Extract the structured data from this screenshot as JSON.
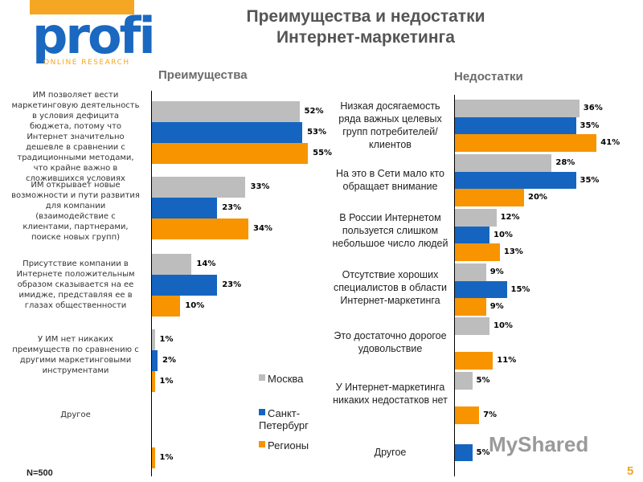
{
  "logo": {
    "main": "profi",
    "sub": "ONLINE RESEARCH"
  },
  "watermark": "MyShared",
  "page_number": "5",
  "sample_note": "N=500",
  "colors": {
    "moscow": "#bdbdbd",
    "spb": "#1565c0",
    "regions": "#f79400",
    "accent": "#f5a623"
  },
  "chart_data": [
    {
      "type": "bar",
      "orientation": "horizontal",
      "title": "Преимущества и недостатки Интернет-маркетинга",
      "subtitle": "Преимущества",
      "categories": [
        "ИМ позволяет вести маркетинговую деятельность в условия дефицита бюджета, потому что Интернет значительно дешевле в сравнении с традиционными методами, что крайне важно в сложившихся условиях",
        "ИМ открывает новые возможности и пути развития для компании (взаимодействие с клиентами, партнерами, поиске новых групп)",
        "Присутствие компании в Интернете положительным образом сказывается на ее имидже, представляя ее в глазах общественности",
        "У ИМ нет никаких преимуществ по сравнению с другими маркетинговыми инструментами",
        "Другое"
      ],
      "series": [
        {
          "name": "Москва",
          "values": [
            52,
            33,
            14,
            1,
            null
          ],
          "labels": [
            "52%",
            "33%",
            "14%",
            "1%",
            ""
          ]
        },
        {
          "name": "Санкт-Петербург",
          "values": [
            53,
            23,
            23,
            2,
            null
          ],
          "labels": [
            "53%",
            "23%",
            "23%",
            "2%",
            ""
          ]
        },
        {
          "name": "Регионы",
          "values": [
            55,
            34,
            10,
            1,
            1
          ],
          "labels": [
            "55%",
            "34%",
            "10%",
            "1%",
            "1%"
          ]
        }
      ],
      "legend": [
        "Москва",
        "Санкт-Петербург",
        "Регионы"
      ],
      "legend_position": "bottom-right",
      "xlim": [
        0,
        60
      ]
    },
    {
      "type": "bar",
      "orientation": "horizontal",
      "subtitle": "Недостатки",
      "categories": [
        "Низкая досягаемость ряда важных целевых групп потребителей/клиентов",
        "На это в Сети мало кто обращает внимание",
        "В России Интернетом пользуется слишком небольшое число людей",
        "Отсутствие хороших специалистов в области Интернет-маркетинга",
        "Это достаточно дорогое удовольствие",
        "У Интернет-маркетинга никаких недостатков нет",
        "Другое"
      ],
      "series": [
        {
          "name": "Москва",
          "values": [
            36,
            28,
            12,
            9,
            10,
            5,
            null
          ],
          "labels": [
            "36%",
            "28%",
            "12%",
            "9%",
            "10%",
            "5%",
            ""
          ]
        },
        {
          "name": "Санкт-Петербург",
          "values": [
            35,
            35,
            10,
            15,
            null,
            null,
            5
          ],
          "labels": [
            "35%",
            "35%",
            "10%",
            "15%",
            "",
            "",
            "5%"
          ]
        },
        {
          "name": "Регионы",
          "values": [
            41,
            20,
            13,
            9,
            11,
            7,
            null
          ],
          "labels": [
            "41%",
            "20%",
            "13%",
            "9%",
            "11%",
            "7%",
            ""
          ]
        }
      ],
      "xlim": [
        0,
        45
      ]
    }
  ]
}
